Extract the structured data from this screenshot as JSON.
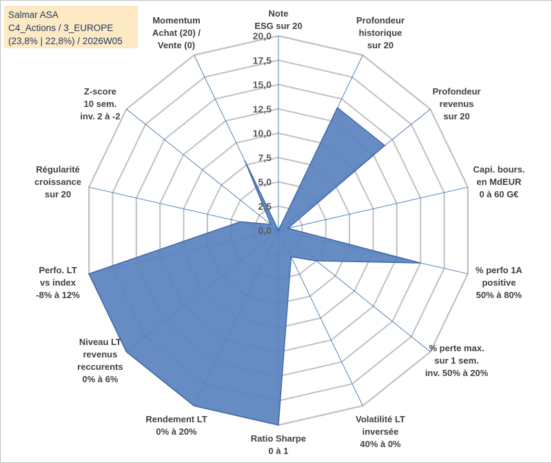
{
  "info": {
    "line1": "Salmar ASA",
    "line2": "C4_Actions / 3_EUROPE",
    "line3": "(23,8% | 22,8%) / 2026W05"
  },
  "colors": {
    "fill": "#5a82bf",
    "stroke": "#3f6aa8",
    "grid": "#c0c0c0",
    "axis": "#4f81bd",
    "label": "#404040"
  },
  "chart_data": {
    "type": "radar",
    "title": "",
    "max": 20,
    "min": 0,
    "grid_levels": 8,
    "tick_labels": [
      "0,0",
      "2,5",
      "5,0",
      "7,5",
      "10,0",
      "12,5",
      "15,0",
      "17,5",
      "20,0"
    ],
    "axes": [
      {
        "label": [
          "Note",
          "ESG sur 20"
        ],
        "value": 0
      },
      {
        "label": [
          "Profondeur",
          "historique",
          "sur 20"
        ],
        "value": 14
      },
      {
        "label": [
          "Profondeur",
          "revenus",
          "sur 20"
        ],
        "value": 14
      },
      {
        "label": [
          "Capi. bours.",
          "en MdEUR",
          "0 à 60 G€"
        ],
        "value": 1
      },
      {
        "label": [
          "% perfo 1A",
          "positive",
          "50% à 80%"
        ],
        "value": 15
      },
      {
        "label": [
          "% perte max.",
          "sur 1 sem.",
          "inv. 50% à 20%"
        ],
        "value": 5
      },
      {
        "label": [
          "Volatilité LT",
          "inversée",
          "40% à 0%"
        ],
        "value": 3
      },
      {
        "label": [
          "Ratio Sharpe",
          "0 à 1"
        ],
        "value": 20
      },
      {
        "label": [
          "Rendement LT",
          "0% à 20%"
        ],
        "value": 20
      },
      {
        "label": [
          "Niveau LT",
          "revenus",
          "reccurents",
          "0% à 6%"
        ],
        "value": 20
      },
      {
        "label": [
          "Perfo. LT",
          "vs index",
          "-8% à 12%"
        ],
        "value": 20
      },
      {
        "label": [
          "Régularité",
          "croissance",
          "sur 20"
        ],
        "value": 4
      },
      {
        "label": [
          "Z-score",
          "10 sem.",
          "inv. 2 à -2"
        ],
        "value": 1
      },
      {
        "label": [
          "Momentum",
          "Achat (20) /",
          "Vente (0)"
        ],
        "value": 8
      }
    ]
  }
}
